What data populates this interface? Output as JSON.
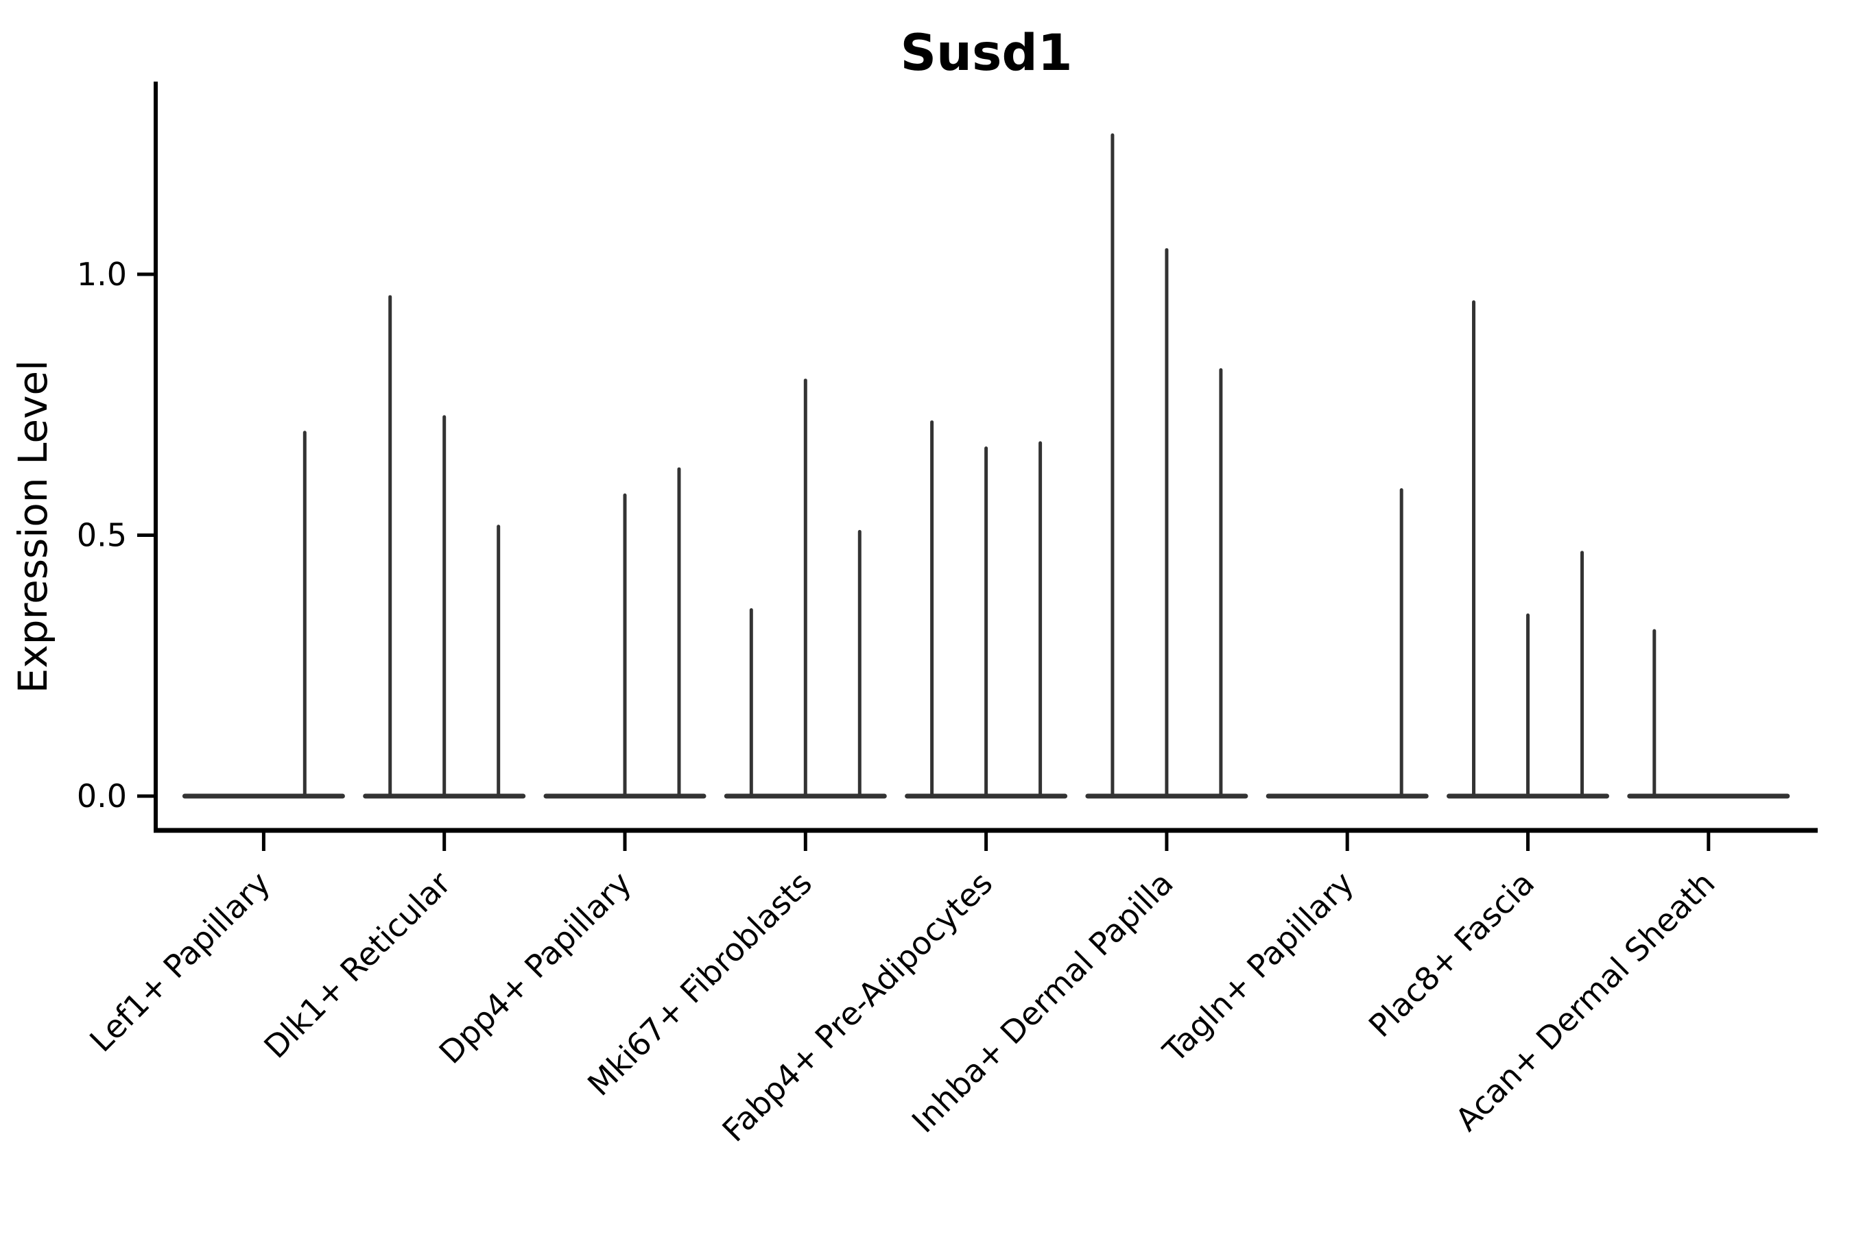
{
  "chart_data": {
    "type": "violin",
    "title": "Susd1",
    "ylabel": "Expression Level",
    "xlabel": "",
    "grid": false,
    "legend_position": "none",
    "ylim": [
      -0.065,
      1.365
    ],
    "yticks": {
      "labels": [
        "0.0",
        "0.5",
        "1.0"
      ],
      "values": [
        0.0,
        0.5,
        1.0
      ]
    },
    "categories": [
      "Lef1+ Papillary",
      "Dlk1+ Reticular",
      "Dpp4+ Papillary",
      "Mki67+ Fibroblasts",
      "Fabp4+ Pre-Adipocytes",
      "Inhba+ Dermal Papilla",
      "Tagln+ Papillary",
      "Plac8+ Fascia",
      "Acan+ Dermal Sheath"
    ],
    "groups": [
      {
        "category": "Lef1+ Papillary",
        "violins": [
          {
            "offset": -0.2275,
            "max": 0.0
          },
          {
            "offset": 0.2275,
            "max": 0.7
          }
        ]
      },
      {
        "category": "Dlk1+ Reticular",
        "violins": [
          {
            "offset": -0.3,
            "max": 0.96
          },
          {
            "offset": 0.0,
            "max": 0.73
          },
          {
            "offset": 0.3,
            "max": 0.52
          }
        ]
      },
      {
        "category": "Dpp4+ Papillary",
        "violins": [
          {
            "offset": -0.3,
            "max": 0.0
          },
          {
            "offset": 0.0,
            "max": 0.58
          },
          {
            "offset": 0.3,
            "max": 0.63
          }
        ]
      },
      {
        "category": "Mki67+ Fibroblasts",
        "violins": [
          {
            "offset": -0.3,
            "max": 0.36
          },
          {
            "offset": 0.0,
            "max": 0.8
          },
          {
            "offset": 0.3,
            "max": 0.51
          }
        ]
      },
      {
        "category": "Fabp4+ Pre-Adipocytes",
        "violins": [
          {
            "offset": -0.3,
            "max": 0.72
          },
          {
            "offset": 0.0,
            "max": 0.67
          },
          {
            "offset": 0.3,
            "max": 0.68
          }
        ]
      },
      {
        "category": "Inhba+ Dermal Papilla",
        "violins": [
          {
            "offset": -0.3,
            "max": 1.27
          },
          {
            "offset": 0.0,
            "max": 1.05
          },
          {
            "offset": 0.3,
            "max": 0.82
          }
        ]
      },
      {
        "category": "Tagln+ Papillary",
        "violins": [
          {
            "offset": -0.3,
            "max": 0.0
          },
          {
            "offset": 0.0,
            "max": 0.0
          },
          {
            "offset": 0.3,
            "max": 0.59
          }
        ]
      },
      {
        "category": "Plac8+ Fascia",
        "violins": [
          {
            "offset": -0.3,
            "max": 0.95
          },
          {
            "offset": 0.0,
            "max": 0.35
          },
          {
            "offset": 0.3,
            "max": 0.47
          }
        ]
      },
      {
        "category": "Acan+ Dermal Sheath",
        "violins": [
          {
            "offset": -0.3,
            "max": 0.32
          },
          {
            "offset": 0.0,
            "max": 0.0
          },
          {
            "offset": 0.3,
            "max": 0.0
          }
        ]
      }
    ],
    "colors": {
      "violin": "#333333",
      "axis": "#000000",
      "text": "#000000",
      "background": "#ffffff"
    }
  }
}
